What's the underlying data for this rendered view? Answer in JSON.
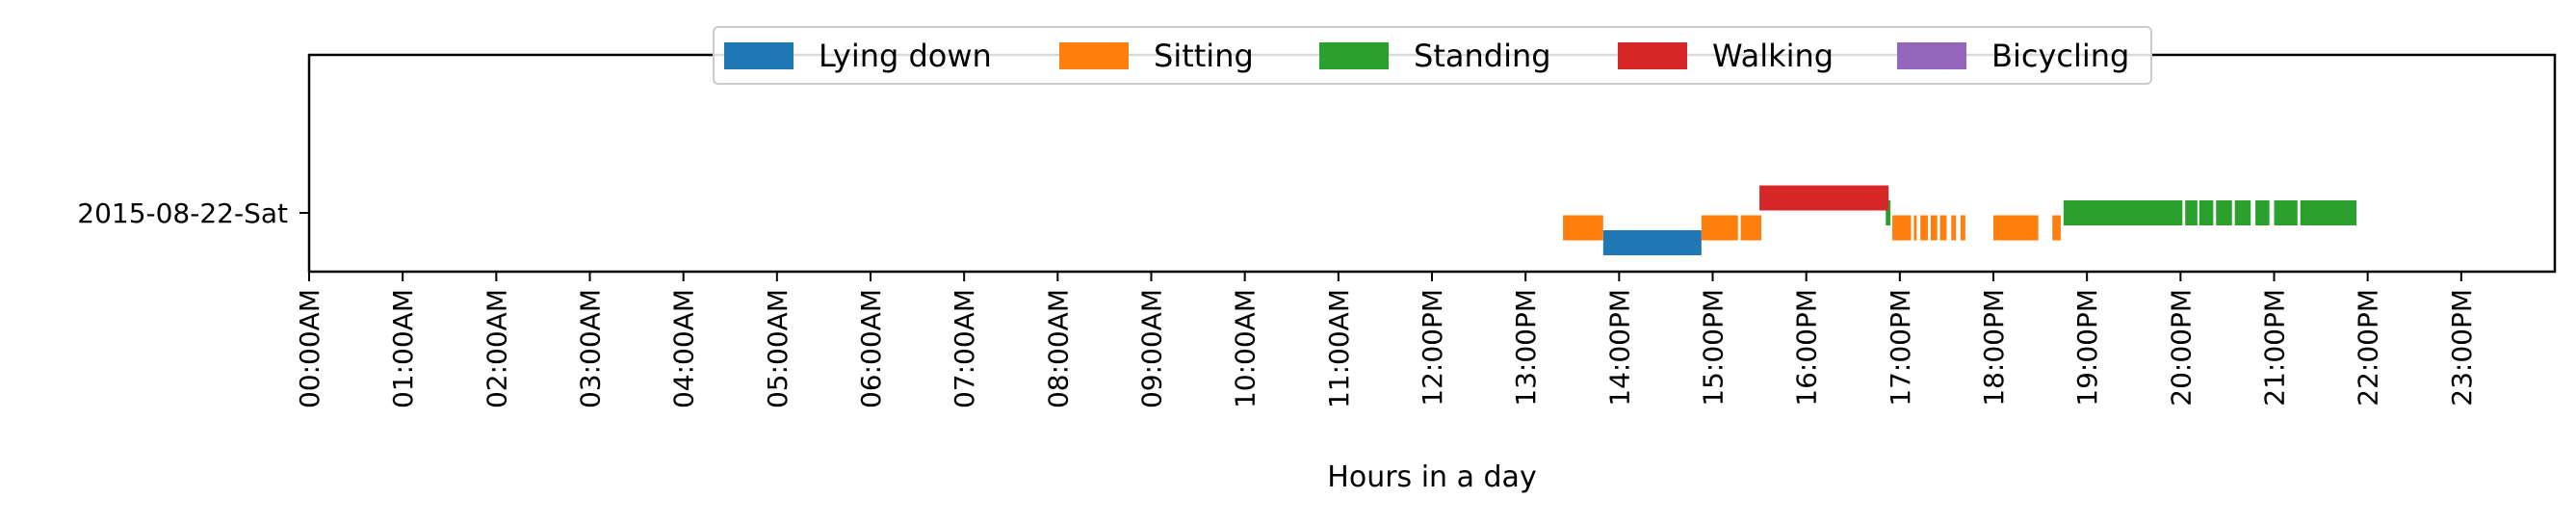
{
  "chart_data": {
    "type": "timeline",
    "title": "",
    "xlabel": "Hours in a day",
    "ylabel": "",
    "xlim": [
      0,
      24
    ],
    "categories": [
      "2015-08-22-Sat"
    ],
    "x_tick_labels": [
      "00:00AM",
      "01:00AM",
      "02:00AM",
      "03:00AM",
      "04:00AM",
      "05:00AM",
      "06:00AM",
      "07:00AM",
      "08:00AM",
      "09:00AM",
      "10:00AM",
      "11:00AM",
      "12:00PM",
      "13:00PM",
      "14:00PM",
      "15:00PM",
      "16:00PM",
      "17:00PM",
      "18:00PM",
      "19:00PM",
      "20:00PM",
      "21:00PM",
      "22:00PM",
      "23:00PM"
    ],
    "legend_position": "top-center",
    "grid": false,
    "series": [
      {
        "name": "Lying down",
        "color": "#1f77b4",
        "offset": -1,
        "intervals": [
          [
            13.83,
            14.88
          ]
        ]
      },
      {
        "name": "Sitting",
        "color": "#ff7f0e",
        "offset": -0.5,
        "intervals": [
          [
            13.4,
            13.83
          ],
          [
            14.88,
            15.27
          ],
          [
            15.3,
            15.52
          ],
          [
            16.92,
            17.12
          ],
          [
            17.15,
            17.18
          ],
          [
            17.22,
            17.3
          ],
          [
            17.33,
            17.4
          ],
          [
            17.43,
            17.5
          ],
          [
            17.55,
            17.6
          ],
          [
            17.65,
            17.7
          ],
          [
            18.0,
            18.48
          ],
          [
            18.63,
            18.72
          ]
        ]
      },
      {
        "name": "Standing",
        "color": "#2ca02c",
        "offset": 0,
        "intervals": [
          [
            16.85,
            16.9
          ],
          [
            18.75,
            20.02
          ],
          [
            20.05,
            20.18
          ],
          [
            20.2,
            20.35
          ],
          [
            20.38,
            20.55
          ],
          [
            20.58,
            20.75
          ],
          [
            20.8,
            20.95
          ],
          [
            21.0,
            21.25
          ],
          [
            21.28,
            21.88
          ]
        ]
      },
      {
        "name": "Walking",
        "color": "#d62728",
        "offset": 0.5,
        "intervals": [
          [
            15.5,
            16.88
          ]
        ]
      },
      {
        "name": "Bicycling",
        "color": "#9467bd",
        "offset": 1,
        "intervals": []
      }
    ]
  }
}
